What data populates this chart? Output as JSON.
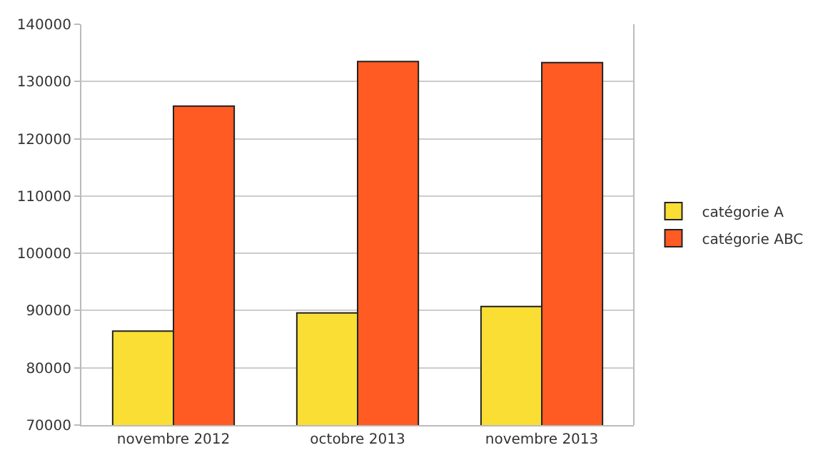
{
  "chart_data": {
    "type": "bar",
    "categories": [
      "novembre 2012",
      "octobre 2013",
      "novembre 2013"
    ],
    "series": [
      {
        "name": "catégorie A",
        "color": "#fbde33",
        "values": [
          86400,
          89600,
          90700
        ]
      },
      {
        "name": "catégorie ABC",
        "color": "#ff5b22",
        "values": [
          125700,
          133500,
          133300
        ]
      }
    ],
    "ylim": [
      70000,
      140000
    ],
    "yticks": [
      70000,
      80000,
      90000,
      100000,
      110000,
      120000,
      130000,
      140000
    ],
    "grid": "y",
    "legend": "right"
  }
}
